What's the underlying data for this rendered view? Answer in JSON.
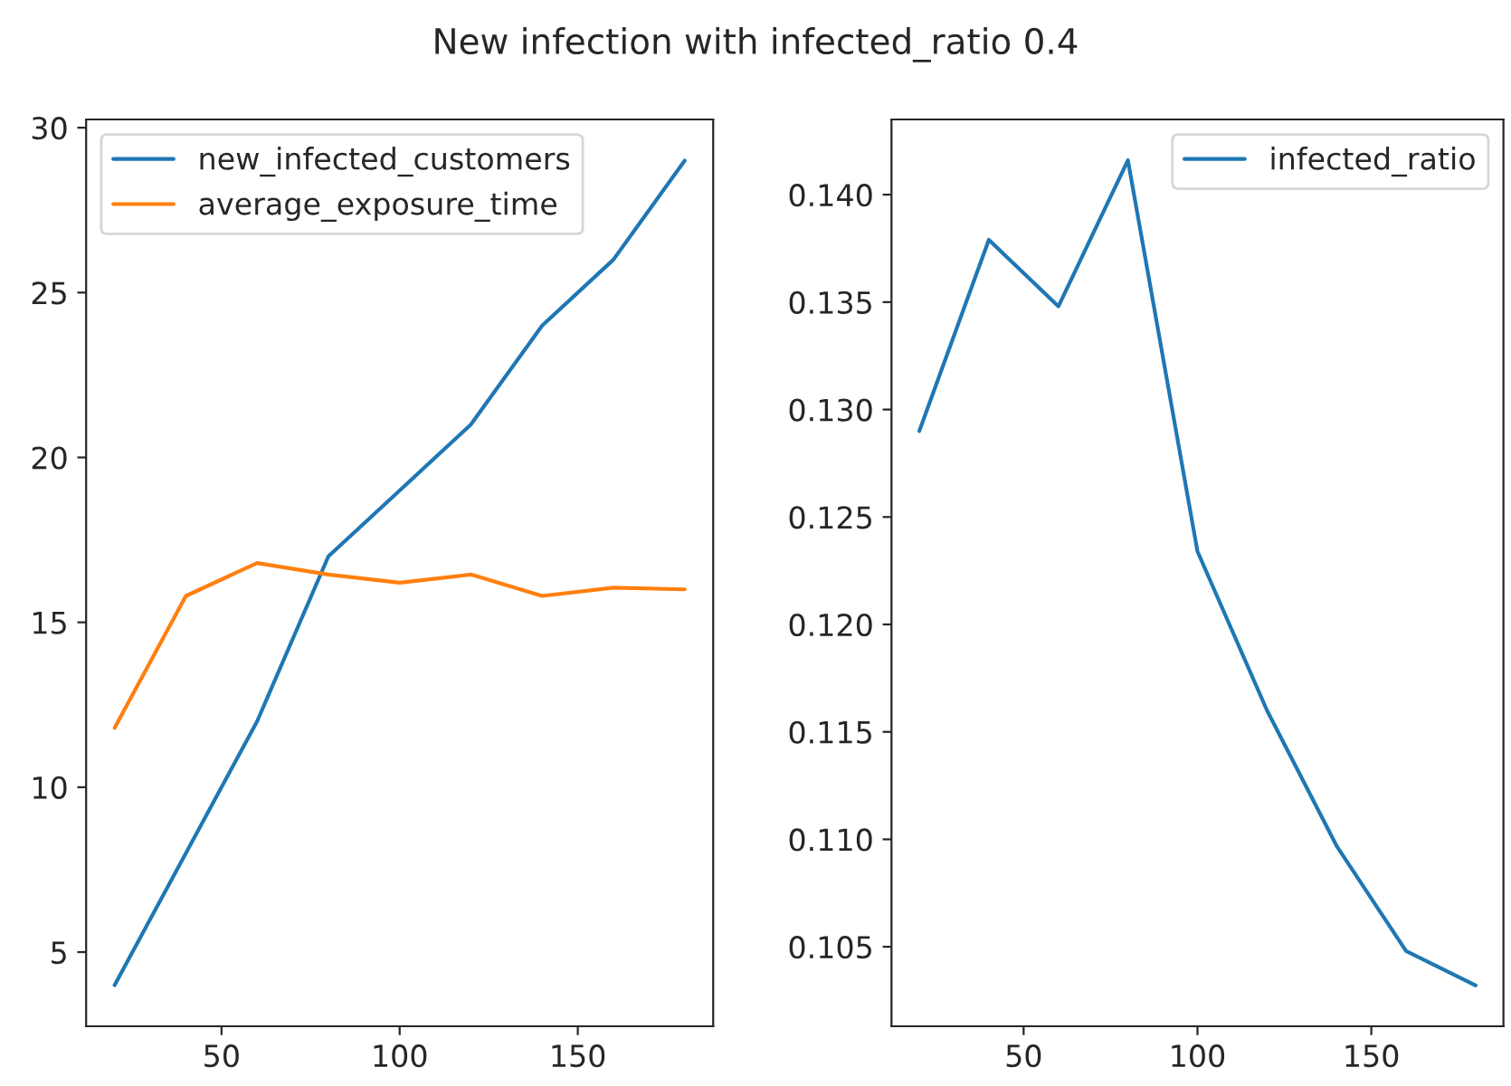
{
  "chart_data": [
    {
      "type": "line",
      "title": "New infection with infected_ratio 0.4",
      "x": [
        20,
        40,
        60,
        80,
        100,
        120,
        140,
        160,
        180
      ],
      "xlim": [
        12,
        188
      ],
      "xticks": [
        50,
        100,
        150
      ],
      "ylim": [
        2.75,
        30.25
      ],
      "yticks": [
        5,
        10,
        15,
        20,
        25,
        30
      ],
      "legend": "top left",
      "series": [
        {
          "name": "new_infected_customers",
          "color": "#1f77b4",
          "values": [
            4,
            8,
            12,
            17,
            19,
            21,
            24,
            26,
            29
          ]
        },
        {
          "name": "average_exposure_time",
          "color": "#ff7f0e",
          "values": [
            11.8,
            15.8,
            16.8,
            16.45,
            16.2,
            16.45,
            15.8,
            16.05,
            16.0
          ]
        }
      ]
    },
    {
      "type": "line",
      "x": [
        20,
        40,
        60,
        80,
        100,
        120,
        140,
        160,
        180
      ],
      "xlim": [
        12,
        188
      ],
      "xticks": [
        50,
        100,
        150
      ],
      "ylim": [
        0.1013,
        0.1435
      ],
      "yticks": [
        {
          "value": 0.105,
          "label": "0.105"
        },
        {
          "value": 0.11,
          "label": "0.110"
        },
        {
          "value": 0.115,
          "label": "0.115"
        },
        {
          "value": 0.12,
          "label": "0.120"
        },
        {
          "value": 0.125,
          "label": "0.125"
        },
        {
          "value": 0.13,
          "label": "0.130"
        },
        {
          "value": 0.135,
          "label": "0.135"
        },
        {
          "value": 0.14,
          "label": "0.140"
        }
      ],
      "legend": "top right",
      "series": [
        {
          "name": "infected_ratio",
          "color": "#1f77b4",
          "values": [
            0.129,
            0.1379,
            0.1348,
            0.1416,
            0.1234,
            0.116,
            0.1097,
            0.1048,
            0.1032
          ]
        }
      ]
    }
  ]
}
